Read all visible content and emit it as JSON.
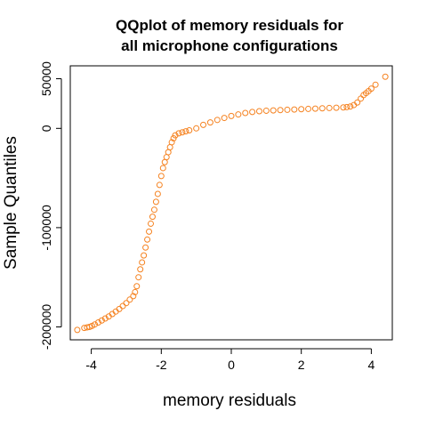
{
  "chart_data": {
    "type": "scatter",
    "title_lines": [
      "QQplot of memory residuals for",
      "all microphone configurations"
    ],
    "xlabel": "memory residuals",
    "ylabel": "Sample Quantiles",
    "xlim": [
      -4.6,
      4.6
    ],
    "ylim": [
      -213000,
      63000
    ],
    "x_ticks": [
      -4,
      -2,
      0,
      2,
      4
    ],
    "x_tick_labels": [
      "-4",
      "-2",
      "0",
      "2",
      "4"
    ],
    "y_ticks": [
      -200000,
      -100000,
      0,
      50000
    ],
    "y_tick_labels": [
      "-200000",
      "-100000",
      "0",
      "50000"
    ],
    "point_color": "#F58220",
    "grid": false,
    "series": [
      {
        "points": [
          [
            -4.4,
            -203000
          ],
          [
            -4.2,
            -201000
          ],
          [
            -4.12,
            -200500
          ],
          [
            -4.05,
            -200000
          ],
          [
            -3.98,
            -199000
          ],
          [
            -3.9,
            -197500
          ],
          [
            -3.8,
            -195500
          ],
          [
            -3.7,
            -193500
          ],
          [
            -3.6,
            -191500
          ],
          [
            -3.5,
            -189500
          ],
          [
            -3.4,
            -187000
          ],
          [
            -3.3,
            -184500
          ],
          [
            -3.2,
            -182000
          ],
          [
            -3.1,
            -179000
          ],
          [
            -3.0,
            -176000
          ],
          [
            -2.9,
            -172500
          ],
          [
            -2.8,
            -169000
          ],
          [
            -2.75,
            -165000
          ],
          [
            -2.7,
            -159000
          ],
          [
            -2.65,
            -150000
          ],
          [
            -2.6,
            -142000
          ],
          [
            -2.55,
            -135000
          ],
          [
            -2.5,
            -128000
          ],
          [
            -2.45,
            -120000
          ],
          [
            -2.4,
            -112000
          ],
          [
            -2.35,
            -104000
          ],
          [
            -2.3,
            -96000
          ],
          [
            -2.25,
            -89000
          ],
          [
            -2.2,
            -82000
          ],
          [
            -2.15,
            -74000
          ],
          [
            -2.1,
            -66000
          ],
          [
            -2.05,
            -57000
          ],
          [
            -2.0,
            -48000
          ],
          [
            -1.95,
            -40000
          ],
          [
            -1.9,
            -34000
          ],
          [
            -1.85,
            -29000
          ],
          [
            -1.8,
            -24000
          ],
          [
            -1.75,
            -19000
          ],
          [
            -1.7,
            -14000
          ],
          [
            -1.65,
            -10000
          ],
          [
            -1.6,
            -7000
          ],
          [
            -1.5,
            -5000
          ],
          [
            -1.4,
            -4000
          ],
          [
            -1.3,
            -3000
          ],
          [
            -1.2,
            -2000
          ],
          [
            -1.0,
            0
          ],
          [
            -0.8,
            3500
          ],
          [
            -0.6,
            6000
          ],
          [
            -0.4,
            8500
          ],
          [
            -0.2,
            10500
          ],
          [
            0.0,
            12500
          ],
          [
            0.2,
            14000
          ],
          [
            0.4,
            15500
          ],
          [
            0.6,
            16500
          ],
          [
            0.8,
            17300
          ],
          [
            1.0,
            17800
          ],
          [
            1.2,
            18100
          ],
          [
            1.4,
            18400
          ],
          [
            1.6,
            18700
          ],
          [
            1.8,
            19000
          ],
          [
            2.0,
            19300
          ],
          [
            2.2,
            19600
          ],
          [
            2.4,
            19900
          ],
          [
            2.6,
            20200
          ],
          [
            2.8,
            20500
          ],
          [
            3.0,
            20800
          ],
          [
            3.2,
            21100
          ],
          [
            3.3,
            21400
          ],
          [
            3.4,
            22000
          ],
          [
            3.5,
            23500
          ],
          [
            3.6,
            26000
          ],
          [
            3.7,
            30000
          ],
          [
            3.78,
            33500
          ],
          [
            3.85,
            35500
          ],
          [
            3.92,
            37500
          ],
          [
            4.0,
            40000
          ],
          [
            4.12,
            44000
          ],
          [
            4.4,
            52000
          ]
        ]
      }
    ]
  }
}
